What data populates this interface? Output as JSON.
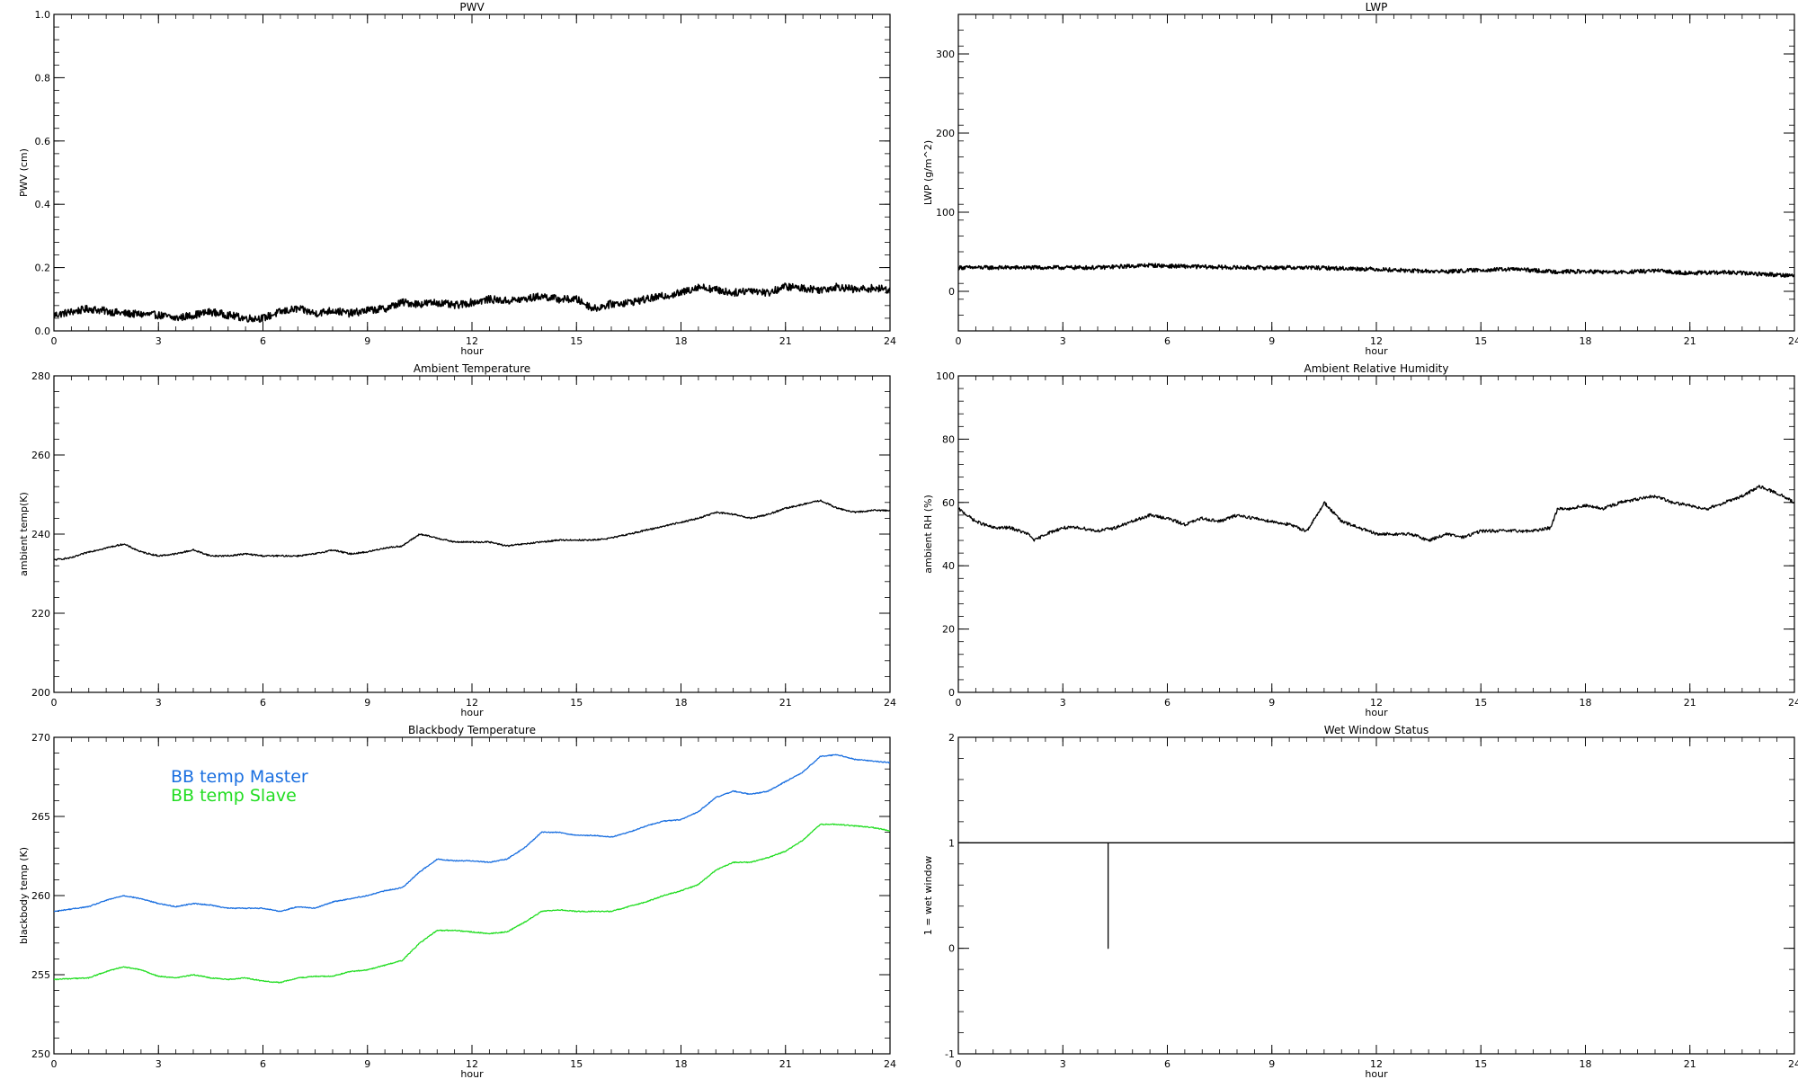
{
  "chart_data": [
    {
      "type": "line",
      "title": "PWV",
      "xlabel": "hour",
      "ylabel": "PWV (cm)",
      "xlim": [
        0,
        24
      ],
      "ylim": [
        0,
        1
      ],
      "xticks": [
        0,
        3,
        6,
        9,
        12,
        15,
        18,
        21,
        24
      ],
      "yticks": [
        0,
        0.2,
        0.4,
        0.6,
        0.8,
        1
      ],
      "ytick_labels": [
        "0.0",
        "0.2",
        "0.4",
        "0.6",
        "0.8",
        "1.0"
      ],
      "series": [
        {
          "color": "#000000",
          "noise": 0.012,
          "x": [
            0,
            1,
            2,
            3,
            3.5,
            4.5,
            5.5,
            6,
            6.5,
            7,
            7.5,
            8,
            8.5,
            9,
            9.5,
            10,
            10.5,
            11,
            11.5,
            12,
            12.5,
            13,
            13.5,
            14,
            14.5,
            15,
            15.5,
            16,
            16.5,
            17,
            17.5,
            18,
            18.5,
            19,
            19.5,
            20,
            20.5,
            21,
            21.5,
            22,
            22.5,
            23,
            23.5,
            24
          ],
          "y": [
            0.05,
            0.07,
            0.055,
            0.05,
            0.04,
            0.06,
            0.04,
            0.04,
            0.06,
            0.07,
            0.055,
            0.065,
            0.055,
            0.065,
            0.07,
            0.09,
            0.085,
            0.09,
            0.08,
            0.09,
            0.1,
            0.095,
            0.1,
            0.11,
            0.1,
            0.1,
            0.07,
            0.085,
            0.09,
            0.1,
            0.11,
            0.12,
            0.14,
            0.13,
            0.12,
            0.13,
            0.12,
            0.14,
            0.135,
            0.13,
            0.14,
            0.13,
            0.135,
            0.13
          ]
        }
      ]
    },
    {
      "type": "line",
      "title": "LWP",
      "xlabel": "hour",
      "ylabel": "LWP (g/m^2)",
      "xlim": [
        0,
        24
      ],
      "ylim": [
        -50,
        350
      ],
      "xticks": [
        0,
        3,
        6,
        9,
        12,
        15,
        18,
        21,
        24
      ],
      "yticks": [
        0,
        100,
        200,
        300
      ],
      "ytick_labels": [
        "0",
        "100",
        "200",
        "300"
      ],
      "series": [
        {
          "color": "#000000",
          "noise": 2.5,
          "x": [
            0,
            2,
            4,
            5.5,
            6,
            8,
            10,
            12,
            13,
            14,
            15,
            16,
            17,
            18,
            19,
            20,
            21,
            22,
            23,
            24
          ],
          "y": [
            30,
            30,
            30,
            33,
            32,
            30,
            30,
            28,
            26,
            25,
            27,
            28,
            25,
            25,
            24,
            26,
            23,
            24,
            22,
            20
          ]
        }
      ]
    },
    {
      "type": "line",
      "title": "Ambient Temperature",
      "xlabel": "hour",
      "ylabel": "ambient temp(K)",
      "xlim": [
        0,
        24
      ],
      "ylim": [
        200,
        280
      ],
      "xticks": [
        0,
        3,
        6,
        9,
        12,
        15,
        18,
        21,
        24
      ],
      "yticks": [
        200,
        220,
        240,
        260,
        280
      ],
      "ytick_labels": [
        "200",
        "220",
        "240",
        "260",
        "280"
      ],
      "series": [
        {
          "color": "#000000",
          "noise": 0.2,
          "x": [
            0,
            0.5,
            1,
            1.5,
            2,
            2.5,
            3,
            3.5,
            4,
            4.5,
            5,
            5.5,
            6,
            6.5,
            7,
            7.5,
            8,
            8.5,
            9,
            9.5,
            10,
            10.5,
            11,
            11.5,
            12,
            12.5,
            13,
            13.5,
            14,
            14.5,
            15,
            15.5,
            16,
            16.5,
            17,
            17.5,
            18,
            18.5,
            19,
            19.5,
            20,
            20.5,
            21,
            21.5,
            22,
            22.5,
            23,
            23.5,
            24
          ],
          "y": [
            233.5,
            234,
            235.5,
            236.5,
            237.5,
            235.5,
            234.5,
            235,
            236,
            234.5,
            234.5,
            235,
            234.5,
            234.5,
            234.5,
            235,
            236,
            235,
            235.5,
            236.5,
            237,
            240,
            239,
            238,
            238,
            238,
            237,
            237.5,
            238,
            238.5,
            238.5,
            238.5,
            239,
            240,
            241,
            242,
            243,
            244,
            245.5,
            245,
            244,
            245,
            246.5,
            247.5,
            248.5,
            246.5,
            245.5,
            246,
            246
          ]
        }
      ]
    },
    {
      "type": "line",
      "title": "Ambient Relative Humidity",
      "xlabel": "hour",
      "ylabel": "ambient RH (%)",
      "xlim": [
        0,
        24
      ],
      "ylim": [
        0,
        100
      ],
      "xticks": [
        0,
        3,
        6,
        9,
        12,
        15,
        18,
        21,
        24
      ],
      "yticks": [
        0,
        20,
        40,
        60,
        80,
        100
      ],
      "ytick_labels": [
        "0",
        "20",
        "40",
        "60",
        "80",
        "100"
      ],
      "series": [
        {
          "color": "#000000",
          "noise": 0.5,
          "x": [
            0,
            0.5,
            1,
            1.5,
            2,
            2.2,
            2.5,
            3,
            3.5,
            4,
            4.5,
            5,
            5.5,
            6,
            6.5,
            7,
            7.5,
            8,
            8.5,
            9,
            9.5,
            10,
            10.3,
            10.5,
            11,
            11.5,
            12,
            12.5,
            13,
            13.5,
            14,
            14.5,
            15,
            15.5,
            16,
            16.5,
            17,
            17.2,
            17.5,
            18,
            18.5,
            19,
            19.5,
            20,
            20.5,
            21,
            21.5,
            22,
            22.5,
            23,
            23.5,
            24
          ],
          "y": [
            58,
            54,
            52,
            52,
            50,
            48,
            50,
            52,
            52,
            51,
            52,
            54,
            56,
            55,
            53,
            55,
            54,
            56,
            55,
            54,
            53,
            51,
            56,
            60,
            54,
            52,
            50,
            50,
            50,
            48,
            50,
            49,
            51,
            51,
            51,
            51,
            52,
            58,
            58,
            59,
            58,
            60,
            61,
            62,
            60,
            59,
            58,
            60,
            62,
            65,
            63,
            60
          ]
        }
      ]
    },
    {
      "type": "line",
      "title": "Blackbody Temperature",
      "xlabel": "hour",
      "ylabel": "blackbody temp (K)",
      "xlim": [
        0,
        24
      ],
      "ylim": [
        250,
        270
      ],
      "xticks": [
        0,
        3,
        6,
        9,
        12,
        15,
        18,
        21,
        24
      ],
      "yticks": [
        250,
        255,
        260,
        265,
        270
      ],
      "ytick_labels": [
        "250",
        "255",
        "260",
        "265",
        "270"
      ],
      "legend_position": "top-left",
      "series": [
        {
          "name": "BB temp Master",
          "color": "#1a6fe0",
          "noise": 0.03,
          "x": [
            0,
            1,
            1.5,
            2,
            2.5,
            3,
            3.5,
            4,
            4.5,
            5,
            5.5,
            6,
            6.5,
            7,
            7.5,
            8,
            8.5,
            9,
            9.5,
            10,
            10.5,
            11,
            11.5,
            12,
            12.5,
            13,
            13.5,
            14,
            14.5,
            15,
            15.5,
            16,
            16.5,
            17,
            17.5,
            18,
            18.5,
            19,
            19.5,
            20,
            20.5,
            21,
            21.5,
            22,
            22.5,
            23,
            23.5,
            24
          ],
          "y": [
            259,
            259.3,
            259.7,
            260,
            259.8,
            259.5,
            259.3,
            259.5,
            259.4,
            259.2,
            259.2,
            259.2,
            259,
            259.3,
            259.2,
            259.6,
            259.8,
            260,
            260.3,
            260.5,
            261.5,
            262.3,
            262.2,
            262.2,
            262.1,
            262.3,
            263,
            264,
            264,
            263.8,
            263.8,
            263.7,
            264,
            264.4,
            264.7,
            264.8,
            265.3,
            266.2,
            266.6,
            266.4,
            266.6,
            267.2,
            267.8,
            268.8,
            268.9,
            268.6,
            268.5,
            268.4
          ]
        },
        {
          "name": "BB temp Slave",
          "color": "#22dd22",
          "noise": 0.03,
          "x": [
            0,
            1,
            1.5,
            2,
            2.5,
            3,
            3.5,
            4,
            4.5,
            5,
            5.5,
            6,
            6.5,
            7,
            7.5,
            8,
            8.5,
            9,
            9.5,
            10,
            10.5,
            11,
            11.5,
            12,
            12.5,
            13,
            13.5,
            14,
            14.5,
            15,
            15.5,
            16,
            16.5,
            17,
            17.5,
            18,
            18.5,
            19,
            19.5,
            20,
            20.5,
            21,
            21.5,
            22,
            22.5,
            23,
            23.5,
            24
          ],
          "y": [
            254.7,
            254.8,
            255.2,
            255.5,
            255.3,
            254.9,
            254.8,
            255,
            254.8,
            254.7,
            254.8,
            254.6,
            254.5,
            254.8,
            254.9,
            254.9,
            255.2,
            255.3,
            255.6,
            255.9,
            257,
            257.8,
            257.8,
            257.7,
            257.6,
            257.7,
            258.3,
            259,
            259.1,
            259,
            259,
            259,
            259.3,
            259.6,
            260,
            260.3,
            260.7,
            261.6,
            262.1,
            262.1,
            262.4,
            262.8,
            263.5,
            264.5,
            264.5,
            264.4,
            264.3,
            264.1
          ]
        }
      ]
    },
    {
      "type": "line",
      "title": "Wet Window Status",
      "xlabel": "hour",
      "ylabel": "1 = wet window",
      "xlim": [
        0,
        24
      ],
      "ylim": [
        -1,
        2
      ],
      "xticks": [
        0,
        3,
        6,
        9,
        12,
        15,
        18,
        21,
        24
      ],
      "yticks": [
        -1,
        0,
        1,
        2
      ],
      "ytick_labels": [
        "-1",
        "0",
        "1",
        "2"
      ],
      "series": [
        {
          "color": "#000000",
          "noise": 0,
          "x": [
            0,
            4.3,
            4.3,
            4.3,
            24
          ],
          "y": [
            1,
            1,
            0,
            1,
            1
          ]
        }
      ]
    }
  ]
}
